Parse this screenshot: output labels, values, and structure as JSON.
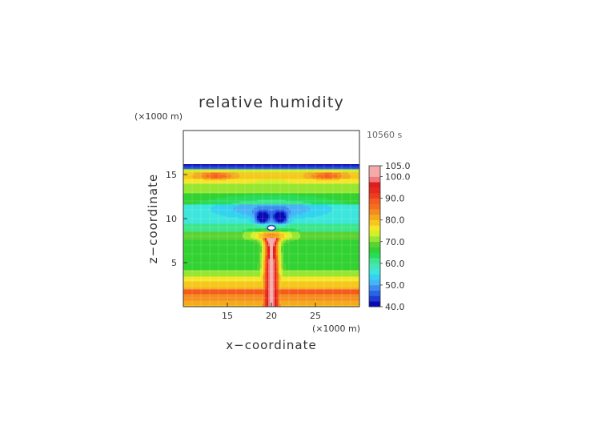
{
  "chart_data": {
    "type": "heatmap",
    "title": "relative humidity",
    "xlabel": "x−coordinate",
    "ylabel": "z−coordinate",
    "x_unit": "(×1000 m)",
    "y_unit": "(×1000 m)",
    "time_label": "10560 s",
    "xlim": [
      10,
      30
    ],
    "ylim": [
      0,
      20
    ],
    "x_ticks": [
      15,
      20,
      25
    ],
    "y_ticks": [
      5,
      10,
      15
    ],
    "grid": true,
    "colorbar": {
      "levels": [
        40,
        42.5,
        45,
        47.5,
        50,
        52.5,
        55,
        57.5,
        60,
        62.5,
        65,
        67.5,
        70,
        72.5,
        75,
        77.5,
        80,
        82.5,
        85,
        87.5,
        90,
        92.5,
        95,
        97.5,
        100,
        105
      ],
      "colors": [
        "#0a0ab4",
        "#1e3cd2",
        "#2864e6",
        "#3c8cf0",
        "#46b4f5",
        "#32d2f0",
        "#3ce6dc",
        "#46e6b4",
        "#3ce68c",
        "#28dc5a",
        "#32d232",
        "#5ad232",
        "#96e632",
        "#d2f028",
        "#f5e628",
        "#f5c81e",
        "#f5aa1e",
        "#f58c1e",
        "#f56e1e",
        "#f55a1e",
        "#eb3c1e",
        "#e6281e",
        "#dc1e1e",
        "#f0787a",
        "#f5aaaa"
      ],
      "labels": [
        "40.0",
        "50.0",
        "60.0",
        "70.0",
        "80.0",
        "90.0",
        "100.0",
        "105.0"
      ],
      "label_values": [
        40,
        50,
        60,
        70,
        80,
        90,
        100,
        105
      ]
    }
  }
}
